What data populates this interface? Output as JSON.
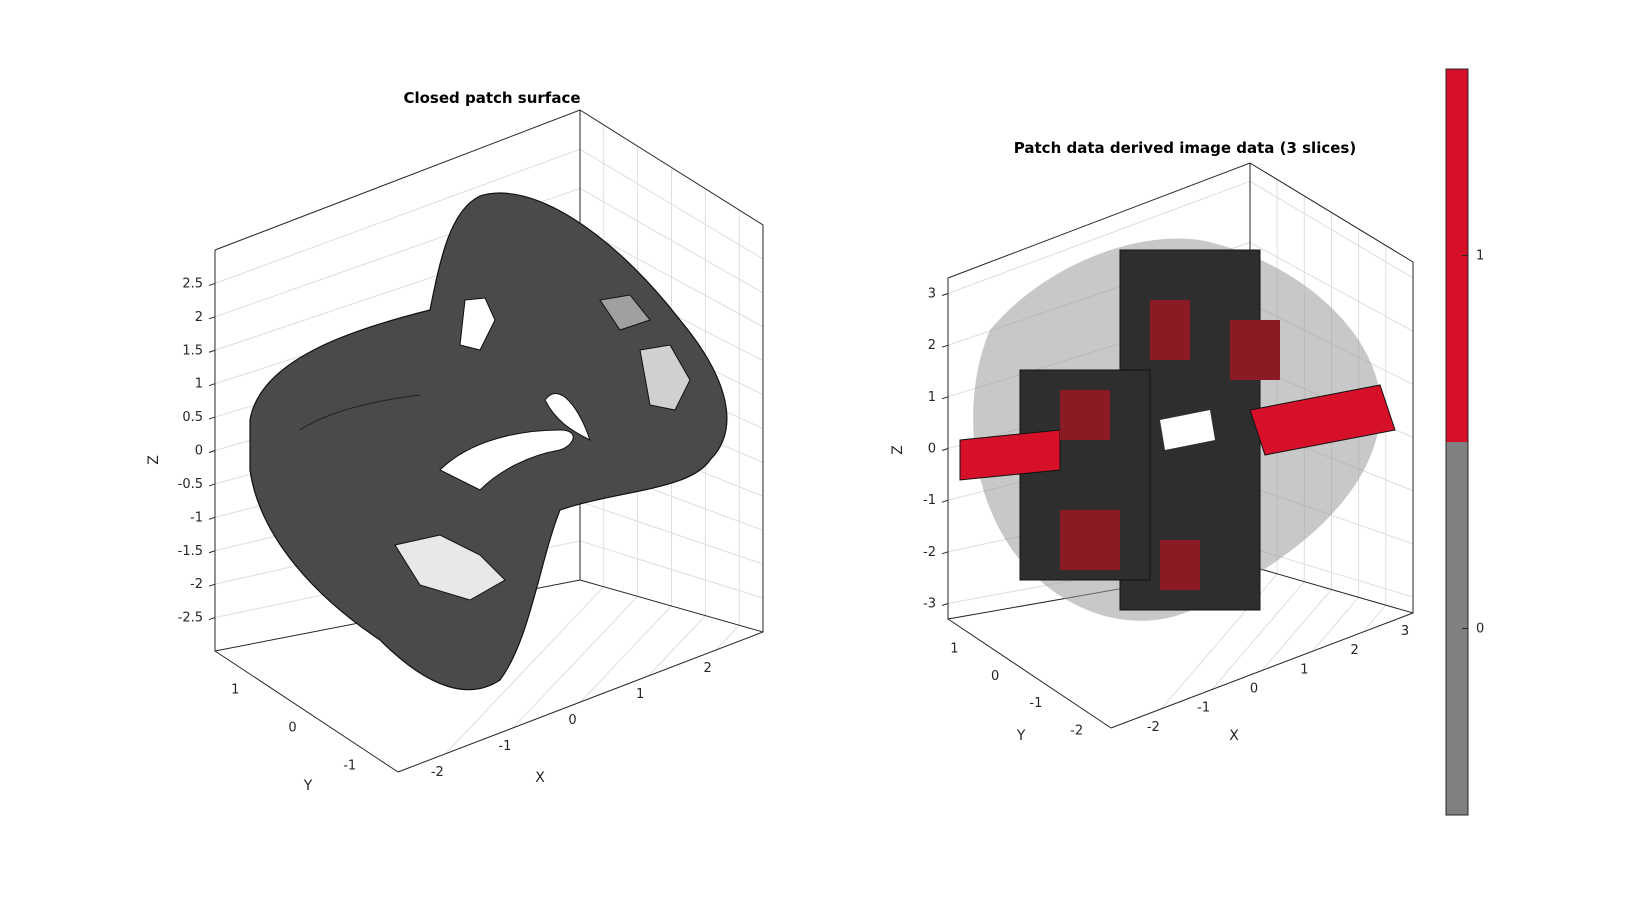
{
  "figure": {
    "left_title": "Closed patch surface",
    "right_title": "Patch data derived image data (3 slices)"
  },
  "chart_data": [
    {
      "type": "surface3d",
      "title": "Closed patch surface",
      "xlabel": "X",
      "ylabel": "Y",
      "zlabel": "Z",
      "x_ticks": [
        "-2",
        "-1",
        "0",
        "1",
        "2"
      ],
      "y_ticks": [
        "-1",
        "0",
        "1"
      ],
      "z_ticks": [
        "-2.5",
        "-2",
        "-1.5",
        "-1",
        "-0.5",
        "0",
        "0.5",
        "1",
        "1.5",
        "2",
        "2.5"
      ],
      "xlim": [
        -2.7,
        2.7
      ],
      "ylim": [
        -1.6,
        1.6
      ],
      "zlim": [
        -3,
        3
      ],
      "grid": true,
      "description_colors": {
        "face": "#4a4a4a",
        "edge": "#111111",
        "highlight": "#ffffff"
      }
    },
    {
      "type": "voxel3d",
      "title": "Patch data derived image data (3 slices)",
      "xlabel": "X",
      "ylabel": "Y",
      "zlabel": "Z",
      "x_ticks": [
        "-2",
        "-1",
        "0",
        "1",
        "2",
        "3"
      ],
      "y_ticks": [
        "-2",
        "-1",
        "0",
        "1"
      ],
      "z_ticks": [
        "-3",
        "-2",
        "-1",
        "0",
        "1",
        "2",
        "3"
      ],
      "xlim": [
        -3,
        3
      ],
      "ylim": [
        -2.5,
        1.5
      ],
      "zlim": [
        -3.3,
        3.3
      ],
      "grid": true,
      "colorbar": {
        "ticks": [
          "0",
          "1"
        ],
        "colors": [
          "#808080",
          "#d7102a"
        ],
        "range": [
          -0.5,
          1.5
        ]
      }
    }
  ]
}
